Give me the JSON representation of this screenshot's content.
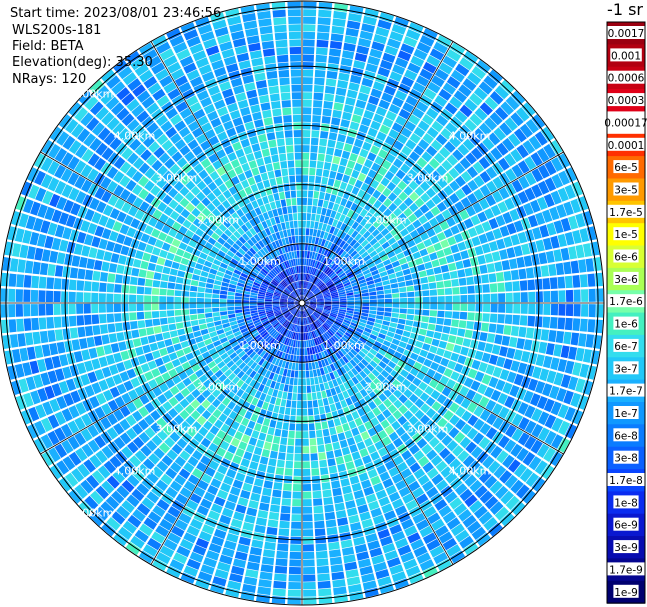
{
  "header": {
    "start_time": "Start time: 2023/08/01 23:46:56",
    "instrument": "WLS200s-181",
    "field": "Field: BETA",
    "elevation": "Elevation(deg): 35.30",
    "nrays": "NRays: 120"
  },
  "colorbar": {
    "unit_label": "-1 sr",
    "levels": [
      {
        "label": "0.0017",
        "color": "#9b0010"
      },
      {
        "label": "0.001",
        "color": "#b20010"
      },
      {
        "label": "0.0006",
        "color": "#c80012"
      },
      {
        "label": "0.0003",
        "color": "#e00018"
      },
      {
        "label": "0.00017",
        "color": "#ffffff"
      },
      {
        "label": "0.0001",
        "color": "#ff3000"
      },
      {
        "label": "6e-5",
        "color": "#ff6a00"
      },
      {
        "label": "3e-5",
        "color": "#ff9a00"
      },
      {
        "label": "1.7e-5",
        "color": "#ffc400"
      },
      {
        "label": "1e-5",
        "color": "#ffff00"
      },
      {
        "label": "6e-6",
        "color": "#d8ff33"
      },
      {
        "label": "3e-6",
        "color": "#aaff55"
      },
      {
        "label": "1.7e-6",
        "color": "#77ffaa"
      },
      {
        "label": "1e-6",
        "color": "#44f0c0"
      },
      {
        "label": "6e-7",
        "color": "#33ddee"
      },
      {
        "label": "3e-7",
        "color": "#22c8f8"
      },
      {
        "label": "1.7e-7",
        "color": "#1ab0ff"
      },
      {
        "label": "1e-7",
        "color": "#1098ff"
      },
      {
        "label": "6e-8",
        "color": "#0a7cff"
      },
      {
        "label": "3e-8",
        "color": "#0a60ff"
      },
      {
        "label": "1.7e-8",
        "color": "#0a46ff"
      },
      {
        "label": "1e-8",
        "color": "#0a2cf0"
      },
      {
        "label": "6e-9",
        "color": "#0a18d0"
      },
      {
        "label": "3e-9",
        "color": "#080cb0"
      },
      {
        "label": "1.7e-9",
        "color": "#050690"
      },
      {
        "label": "1e-9",
        "color": "#000070"
      }
    ]
  },
  "chart_data": {
    "type": "heatmap",
    "projection": "polar (PPI scan)",
    "field": "BETA",
    "elevation_deg": 35.3,
    "n_rays": 120,
    "start_time": "2023/08/01 23:46:56",
    "range_rings_km": [
      1.0,
      2.0,
      3.0,
      4.0,
      5.0
    ],
    "range_ring_labels": [
      "1.00km",
      "2.00km",
      "3.00km",
      "4.00km",
      "5.00km"
    ],
    "max_range_km": 5.1,
    "radial_lines_deg": [
      0,
      30,
      60,
      90,
      120,
      150,
      180,
      210,
      240,
      270,
      300,
      330
    ],
    "color_scale": "log",
    "value_range": [
      1e-09,
      0.0017
    ],
    "value_unit": "m-1 sr-1",
    "typical_value_by_range_km": [
      {
        "range_km": 0.5,
        "value": 1.7e-08
      },
      {
        "range_km": 1.5,
        "value": 3e-07
      },
      {
        "range_km": 2.5,
        "value": 6e-07
      },
      {
        "range_km": 3.5,
        "value": 3e-07
      },
      {
        "range_km": 4.5,
        "value": 1.7e-07
      },
      {
        "range_km": 5.0,
        "value": 3e-07
      }
    ],
    "annotations": [
      "5.00km",
      "4.00km",
      "3.00km",
      "2.00km",
      "1.00km"
    ]
  }
}
